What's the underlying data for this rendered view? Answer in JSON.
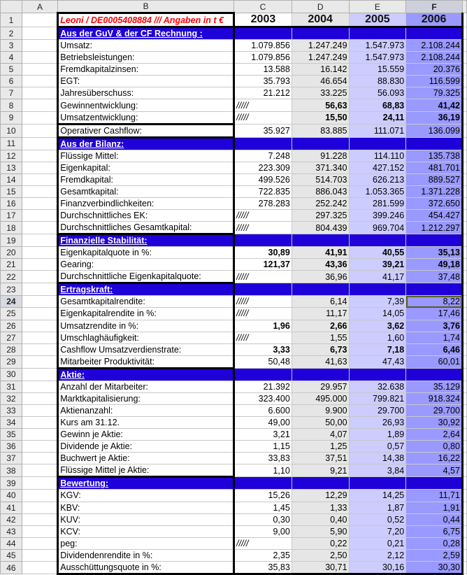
{
  "columns": [
    "A",
    "B",
    "C",
    "D",
    "E",
    "F"
  ],
  "selected_cell": "F24",
  "title": "Leoni / DE0005408884 /// Angaben in t €",
  "years": [
    "2003",
    "2004",
    "2005",
    "2006"
  ],
  "colors": {
    "section": "#1f00d8",
    "col_2004": "#e6e6e6",
    "col_2005": "#ccccff",
    "col_2006": "#9999ff",
    "title": "#ff0000"
  },
  "rows": [
    {
      "n": "2",
      "label": "Aus der GuV & der CF Rechnung :",
      "section": true
    },
    {
      "n": "3",
      "label": "Umsatz:",
      "v": [
        "1.079.856",
        "1.247.249",
        "1.547.973",
        "2.108.244"
      ]
    },
    {
      "n": "4",
      "label": "Betriebsleistungen:",
      "v": [
        "1.079.856",
        "1.247.249",
        "1.547.973",
        "2.108.244"
      ]
    },
    {
      "n": "5",
      "label": "Fremdkapitalzinsen:",
      "v": [
        "13.588",
        "16.142",
        "15.559",
        "20.376"
      ]
    },
    {
      "n": "6",
      "label": "EGT:",
      "v": [
        "35.793",
        "46.654",
        "88.830",
        "116.599"
      ]
    },
    {
      "n": "7",
      "label": "Jahresüberschuss:",
      "v": [
        "21.212",
        "33.225",
        "56.093",
        "79.325"
      ]
    },
    {
      "n": "8",
      "label": "Gewinnentwicklung:",
      "v": [
        "/////",
        "56,63",
        "68,83",
        "41,42"
      ],
      "bold": true
    },
    {
      "n": "9",
      "label": "Umsatzentwicklung:",
      "v": [
        "/////",
        "15,50",
        "24,11",
        "36,19"
      ],
      "bold": true,
      "thick": true
    },
    {
      "n": "10",
      "label": "Operativer Cashflow:",
      "v": [
        "35.927",
        "83.885",
        "111.071",
        "136.099"
      ],
      "thick": true
    },
    {
      "n": "11",
      "label": "Aus der Bilanz:",
      "section": true
    },
    {
      "n": "12",
      "label": "Flüssige Mittel:",
      "v": [
        "7.248",
        "91.228",
        "114.110",
        "135.738"
      ]
    },
    {
      "n": "13",
      "label": "Eigenkapital:",
      "v": [
        "223.309",
        "371.340",
        "427.152",
        "481.701"
      ]
    },
    {
      "n": "14",
      "label": "Fremdkapital:",
      "v": [
        "499.526",
        "514.703",
        "626.213",
        "889.527"
      ]
    },
    {
      "n": "15",
      "label": "Gesamtkapital:",
      "v": [
        "722.835",
        "886.043",
        "1.053.365",
        "1.371.228"
      ]
    },
    {
      "n": "16",
      "label": "Finanzverbindlichkeiten:",
      "v": [
        "278.283",
        "252.242",
        "281.599",
        "372.650"
      ]
    },
    {
      "n": "17",
      "label": "Durchschnittliches EK:",
      "v": [
        "/////",
        "297.325",
        "399.246",
        "454.427"
      ]
    },
    {
      "n": "18",
      "label": "Durchschnittliches Gesamtkapital:",
      "v": [
        "/////",
        "804.439",
        "969.704",
        "1.212.297"
      ],
      "thick": true
    },
    {
      "n": "19",
      "label": "Finanzielle Stabilität:",
      "section": true
    },
    {
      "n": "20",
      "label": "Eigenkapitalquote in %:",
      "v": [
        "30,89",
        "41,91",
        "40,55",
        "35,13"
      ],
      "bold": true
    },
    {
      "n": "21",
      "label": "Gearing:",
      "v": [
        "121,37",
        "43,36",
        "39,21",
        "49,18"
      ],
      "bold": true
    },
    {
      "n": "22",
      "label": "Durchschnittliche Eigenkapitalquote:",
      "v": [
        "/////",
        "36,96",
        "41,17",
        "37,48"
      ],
      "thick": true
    },
    {
      "n": "23",
      "label": "Ertragskraft:",
      "section": true
    },
    {
      "n": "24",
      "label": "Gesamtkapitalrendite:",
      "v": [
        "/////",
        "6,14",
        "7,39",
        "8,22"
      ],
      "active": true
    },
    {
      "n": "25",
      "label": "Eigenkapitalrendite in %:",
      "v": [
        "/////",
        "11,17",
        "14,05",
        "17,46"
      ]
    },
    {
      "n": "26",
      "label": "Umsatzrendite in %:",
      "v": [
        "1,96",
        "2,66",
        "3,62",
        "3,76"
      ],
      "bold": true
    },
    {
      "n": "27",
      "label": "Umschlaghäufigkeit:",
      "v": [
        "/////",
        "1,55",
        "1,60",
        "1,74"
      ]
    },
    {
      "n": "28",
      "label": "Cashflow Umsatzverdienstrate:",
      "v": [
        "3,33",
        "6,73",
        "7,18",
        "6,46"
      ],
      "bold": true
    },
    {
      "n": "29",
      "label": "Mitarbeiter Produktivität:",
      "v": [
        "50,48",
        "41,63",
        "47,43",
        "60,01"
      ],
      "thick": true
    },
    {
      "n": "30",
      "label": "Aktie:",
      "section": true
    },
    {
      "n": "31",
      "label": "Anzahl der Mitarbeiter:",
      "v": [
        "21.392",
        "29.957",
        "32.638",
        "35.129"
      ]
    },
    {
      "n": "32",
      "label": "Marktkapitalisierung:",
      "v": [
        "323.400",
        "495.000",
        "799.821",
        "918.324"
      ]
    },
    {
      "n": "33",
      "label": "Aktienanzahl:",
      "v": [
        "6.600",
        "9.900",
        "29.700",
        "29.700"
      ]
    },
    {
      "n": "34",
      "label": "Kurs am 31.12.",
      "v": [
        "49,00",
        "50,00",
        "26,93",
        "30,92"
      ]
    },
    {
      "n": "35",
      "label": "Gewinn je Aktie:",
      "v": [
        "3,21",
        "4,07",
        "1,89",
        "2,64"
      ]
    },
    {
      "n": "36",
      "label": "Dividende je Aktie:",
      "v": [
        "1,15",
        "1,25",
        "0,57",
        "0,80"
      ]
    },
    {
      "n": "37",
      "label": "Buchwert je Aktie:",
      "v": [
        "33,83",
        "37,51",
        "14,38",
        "16,22"
      ]
    },
    {
      "n": "38",
      "label": "Flüssige Mittel je Aktie:",
      "v": [
        "1,10",
        "9,21",
        "3,84",
        "4,57"
      ],
      "thick": true
    },
    {
      "n": "39",
      "label": "Bewertung:",
      "section": true
    },
    {
      "n": "40",
      "label": "KGV:",
      "v": [
        "15,26",
        "12,29",
        "14,25",
        "11,71"
      ]
    },
    {
      "n": "41",
      "label": "KBV:",
      "v": [
        "1,45",
        "1,33",
        "1,87",
        "1,91"
      ]
    },
    {
      "n": "42",
      "label": "KUV:",
      "v": [
        "0,30",
        "0,40",
        "0,52",
        "0,44"
      ]
    },
    {
      "n": "43",
      "label": "KCV:",
      "v": [
        "9,00",
        "5,90",
        "7,20",
        "6,75"
      ]
    },
    {
      "n": "44",
      "label": "peg:",
      "v": [
        "/////",
        "0,22",
        "0,21",
        "0,28"
      ]
    },
    {
      "n": "45",
      "label": "Dividendenrendite in %:",
      "v": [
        "2,35",
        "2,50",
        "2,12",
        "2,59"
      ]
    },
    {
      "n": "46",
      "label": "Ausschüttungsquote in %:",
      "v": [
        "35,83",
        "30,71",
        "30,16",
        "30,30"
      ],
      "thick": true
    }
  ]
}
